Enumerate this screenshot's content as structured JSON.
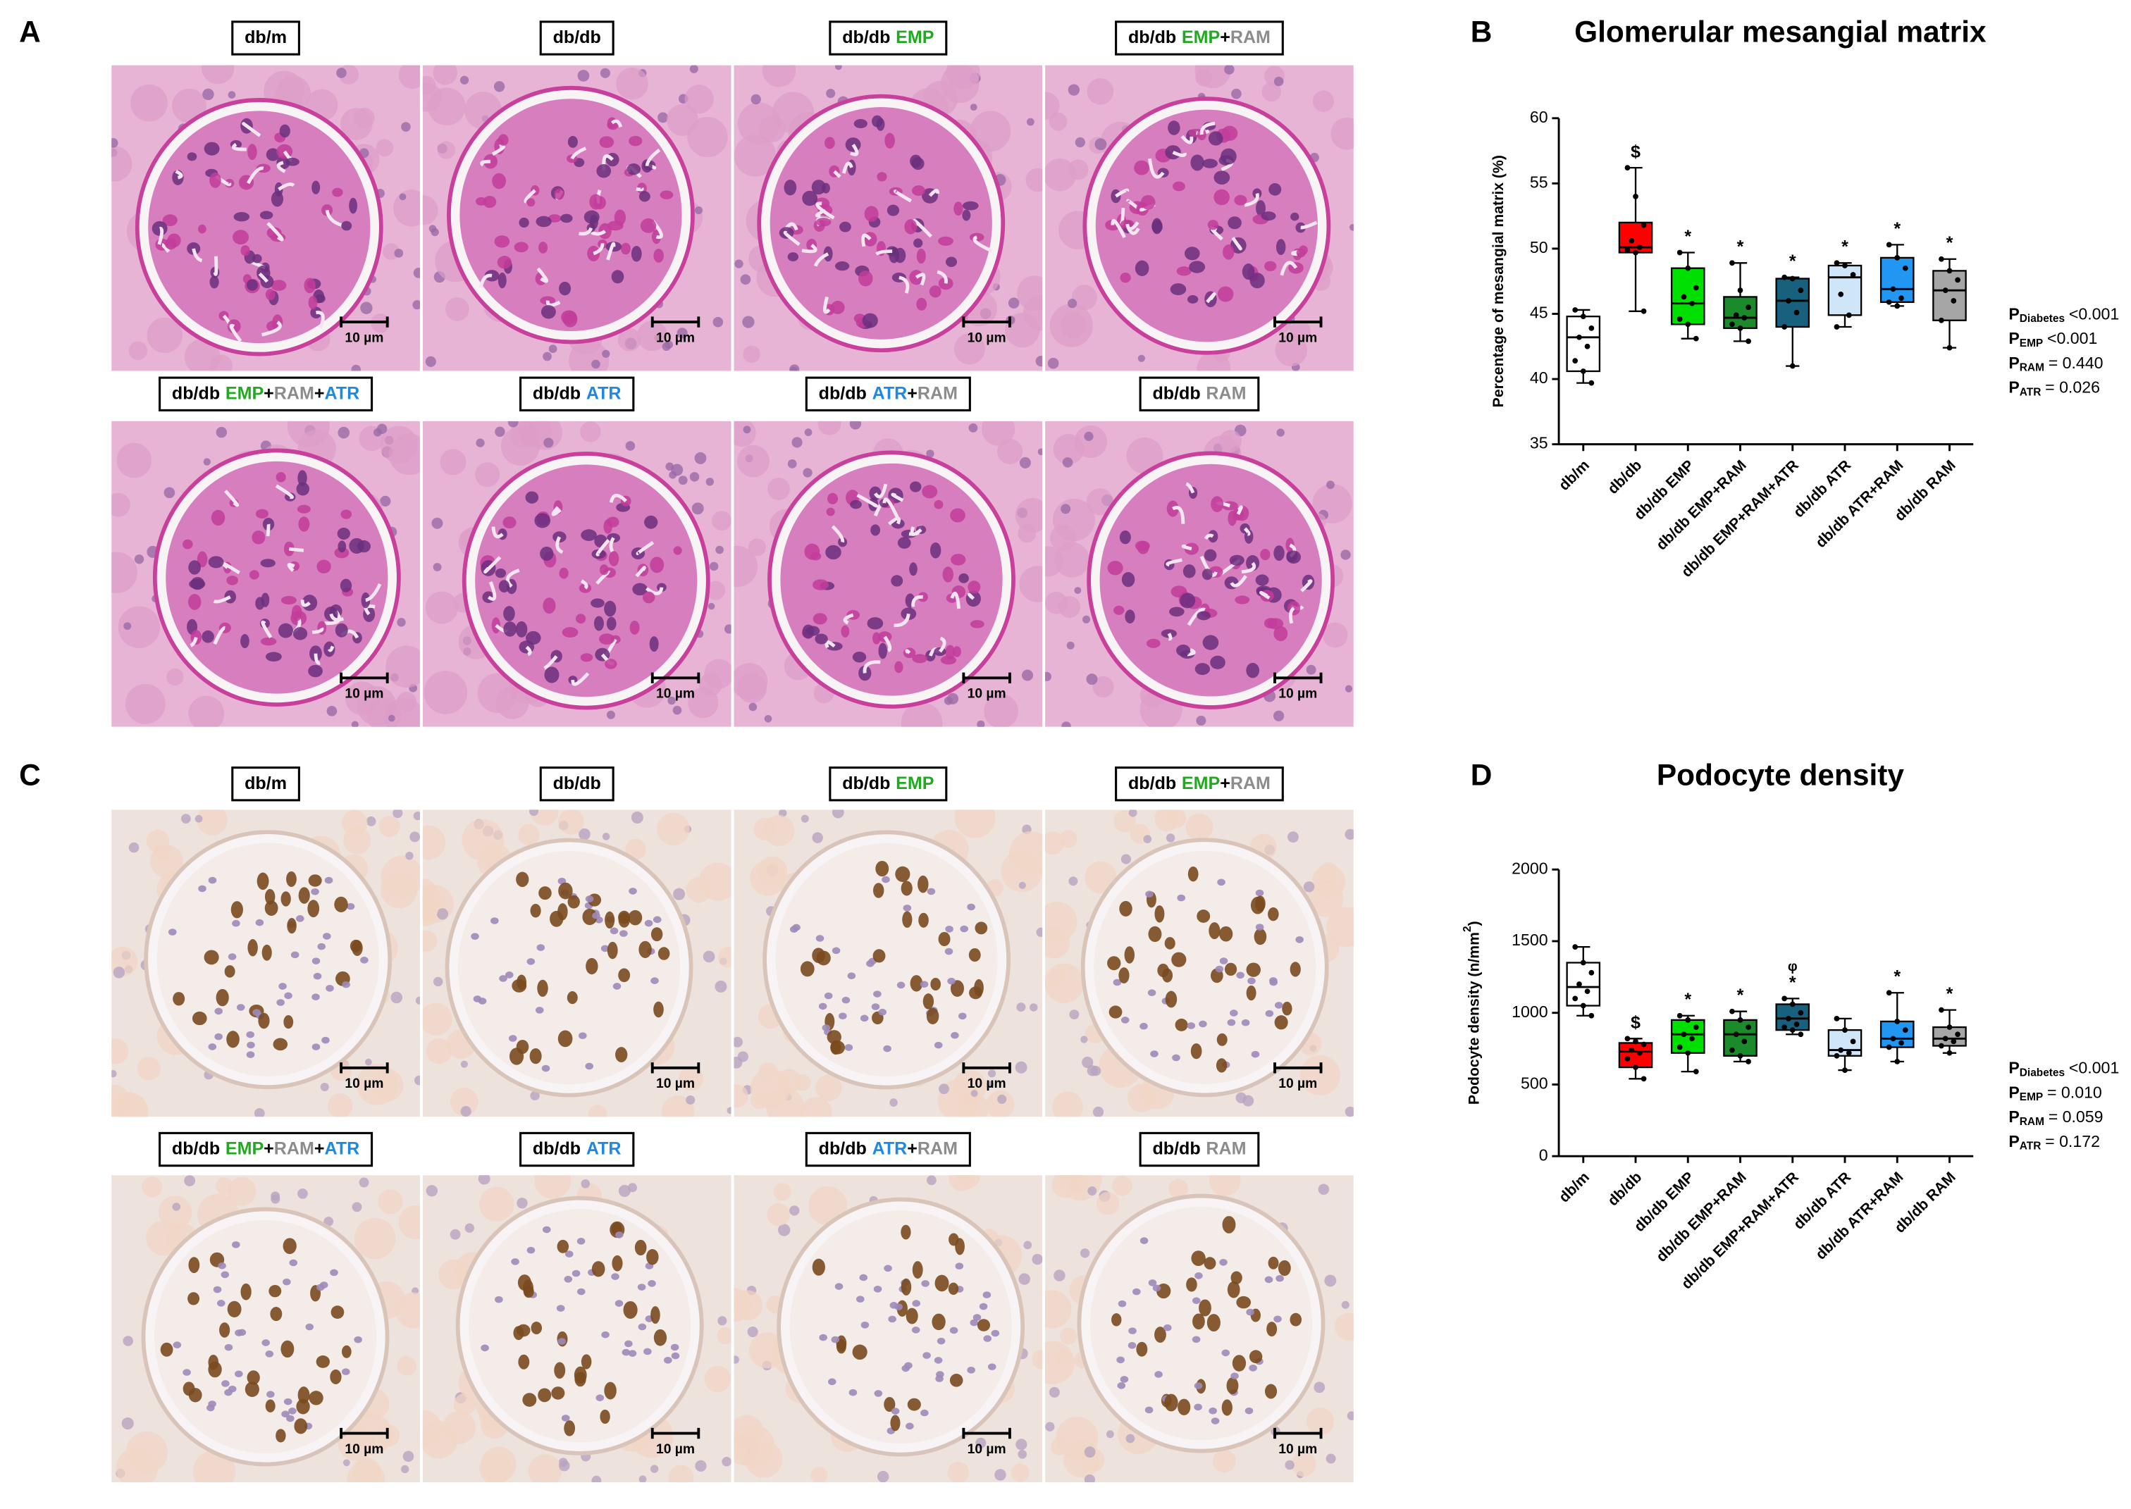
{
  "figure": {
    "panels": [
      {
        "label": "A",
        "stain": "pas",
        "images": [
          {
            "label": {
              "group": "db/m"
            },
            "scale": "10 µm"
          },
          {
            "label": {
              "group": "db/db"
            },
            "scale": "10 µm"
          },
          {
            "label": {
              "group": "db/db",
              "parts": [
                {
                  "text": "EMP",
                  "color": "#1faa1f"
                }
              ]
            },
            "scale": "10 µm"
          },
          {
            "label": {
              "group": "db/db",
              "parts": [
                {
                  "text": "EMP",
                  "color": "#1faa1f"
                },
                {
                  "text": "+",
                  "color": "#000000"
                },
                {
                  "text": "RAM",
                  "color": "#8c8c8c"
                }
              ]
            },
            "scale": "10 µm"
          },
          {
            "label": {
              "group": "db/db",
              "parts": [
                {
                  "text": "EMP",
                  "color": "#1faa1f"
                },
                {
                  "text": "+",
                  "color": "#000000"
                },
                {
                  "text": "RAM",
                  "color": "#8c8c8c"
                },
                {
                  "text": "+",
                  "color": "#000000"
                },
                {
                  "text": "ATR",
                  "color": "#1e88e5"
                }
              ]
            },
            "scale": "10 µm"
          },
          {
            "label": {
              "group": "db/db",
              "parts": [
                {
                  "text": "ATR",
                  "color": "#1e88e5"
                }
              ]
            },
            "scale": "10 µm"
          },
          {
            "label": {
              "group": "db/db",
              "parts": [
                {
                  "text": "ATR",
                  "color": "#1e88e5"
                },
                {
                  "text": "+",
                  "color": "#000000"
                },
                {
                  "text": "RAM",
                  "color": "#8c8c8c"
                }
              ]
            },
            "scale": "10 µm"
          },
          {
            "label": {
              "group": "db/db",
              "parts": [
                {
                  "text": "RAM",
                  "color": "#8c8c8c"
                }
              ]
            },
            "scale": "10 µm"
          }
        ]
      },
      {
        "label": "C",
        "stain": "wt1",
        "images": [
          {
            "label": {
              "group": "db/m"
            },
            "scale": "10 µm"
          },
          {
            "label": {
              "group": "db/db"
            },
            "scale": "10 µm"
          },
          {
            "label": {
              "group": "db/db",
              "parts": [
                {
                  "text": "EMP",
                  "color": "#1faa1f"
                }
              ]
            },
            "scale": "10 µm"
          },
          {
            "label": {
              "group": "db/db",
              "parts": [
                {
                  "text": "EMP",
                  "color": "#1faa1f"
                },
                {
                  "text": "+",
                  "color": "#000000"
                },
                {
                  "text": "RAM",
                  "color": "#8c8c8c"
                }
              ]
            },
            "scale": "10 µm"
          },
          {
            "label": {
              "group": "db/db",
              "parts": [
                {
                  "text": "EMP",
                  "color": "#1faa1f"
                },
                {
                  "text": "+",
                  "color": "#000000"
                },
                {
                  "text": "RAM",
                  "color": "#8c8c8c"
                },
                {
                  "text": "+",
                  "color": "#000000"
                },
                {
                  "text": "ATR",
                  "color": "#1e88e5"
                }
              ]
            },
            "scale": "10 µm"
          },
          {
            "label": {
              "group": "db/db",
              "parts": [
                {
                  "text": "ATR",
                  "color": "#1e88e5"
                }
              ]
            },
            "scale": "10 µm"
          },
          {
            "label": {
              "group": "db/db",
              "parts": [
                {
                  "text": "ATR",
                  "color": "#1e88e5"
                },
                {
                  "text": "+",
                  "color": "#000000"
                },
                {
                  "text": "RAM",
                  "color": "#8c8c8c"
                }
              ]
            },
            "scale": "10 µm"
          },
          {
            "label": {
              "group": "db/db",
              "parts": [
                {
                  "text": "RAM",
                  "color": "#8c8c8c"
                }
              ]
            },
            "scale": "10 µm"
          }
        ]
      }
    ]
  },
  "chart_data": [
    {
      "type": "box",
      "label": "B",
      "title": "Glomerular mesangial matrix",
      "ylabel": {
        "text": "Percentage of mesangial matrix (%)"
      },
      "ylim": [
        35,
        60
      ],
      "yticks": [
        35,
        40,
        45,
        50,
        55,
        60
      ],
      "categories": [
        "db/m",
        "db/db",
        "db/db EMP",
        "db/db EMP+RAM",
        "db/db EMP+RAM+ATR",
        "db/db ATR",
        "db/db ATR+RAM",
        "db/db RAM"
      ],
      "colors": [
        "#ffffff",
        "#ff0000",
        "#00e000",
        "#1a8a2a",
        "#17607e",
        "#cfe6f8",
        "#2196f3",
        "#a6a6a6"
      ],
      "boxes": [
        {
          "min": 39.7,
          "q1": 40.6,
          "median": 43.2,
          "q3": 44.8,
          "max": 45.3,
          "points": [
            45.3,
            44.8,
            43.9,
            43.2,
            42.5,
            41.4,
            40.6,
            39.7
          ]
        },
        {
          "min": 45.2,
          "q1": 49.7,
          "median": 50.1,
          "q3": 52.0,
          "max": 56.2,
          "points": [
            56.2,
            54.0,
            51.8,
            50.6,
            50.1,
            49.9,
            49.7,
            45.2
          ]
        },
        {
          "min": 43.1,
          "q1": 44.2,
          "median": 45.8,
          "q3": 48.5,
          "max": 49.7,
          "points": [
            49.7,
            48.5,
            47.0,
            46.3,
            45.8,
            44.6,
            44.2,
            43.1
          ]
        },
        {
          "min": 42.9,
          "q1": 43.9,
          "median": 44.7,
          "q3": 46.3,
          "max": 48.9,
          "points": [
            48.9,
            46.8,
            45.5,
            44.9,
            44.7,
            44.2,
            43.9,
            42.9
          ]
        },
        {
          "min": 41.0,
          "q1": 44.0,
          "median": 46.0,
          "q3": 47.7,
          "max": 47.8,
          "points": [
            47.8,
            47.7,
            46.8,
            46.0,
            45.1,
            44.0,
            41.0
          ]
        },
        {
          "min": 44.0,
          "q1": 44.9,
          "median": 47.8,
          "q3": 48.7,
          "max": 48.9,
          "points": [
            48.9,
            48.7,
            48.0,
            46.5,
            44.9,
            44.0
          ]
        },
        {
          "min": 45.6,
          "q1": 45.9,
          "median": 46.9,
          "q3": 49.3,
          "max": 50.3,
          "points": [
            50.3,
            49.3,
            48.5,
            46.9,
            46.2,
            45.9,
            45.6
          ]
        },
        {
          "min": 42.4,
          "q1": 44.5,
          "median": 46.8,
          "q3": 48.3,
          "max": 49.2,
          "points": [
            49.2,
            48.3,
            47.6,
            46.8,
            46.0,
            44.5,
            42.4
          ]
        }
      ],
      "markers": [
        null,
        [
          "$"
        ],
        [
          "*"
        ],
        [
          "*"
        ],
        [
          "*"
        ],
        [
          "*"
        ],
        [
          "*"
        ],
        [
          "*"
        ]
      ],
      "stats": [
        {
          "p": "P",
          "sub": "Diabetes",
          "text": "<0.001"
        },
        {
          "p": "P",
          "sub": "EMP",
          "text": "<0.001"
        },
        {
          "p": "P",
          "sub": "RAM",
          "text": "= 0.440"
        },
        {
          "p": "P",
          "sub": "ATR",
          "text": "= 0.026"
        }
      ]
    },
    {
      "type": "box",
      "label": "D",
      "title": "Podocyte density",
      "ylabel": {
        "text": "Podocyte density (n/mm",
        "sup": "2",
        "end": ")"
      },
      "ylim": [
        0,
        2000
      ],
      "yticks": [
        0,
        500,
        1000,
        1500,
        2000
      ],
      "categories": [
        "db/m",
        "db/db",
        "db/db EMP",
        "db/db EMP+RAM",
        "db/db EMP+RAM+ATR",
        "db/db ATR",
        "db/db ATR+RAM",
        "db/db RAM"
      ],
      "colors": [
        "#ffffff",
        "#ff0000",
        "#00e000",
        "#1a8a2a",
        "#17607e",
        "#cfe6f8",
        "#2196f3",
        "#a6a6a6"
      ],
      "boxes": [
        {
          "min": 980,
          "q1": 1050,
          "median": 1180,
          "q3": 1350,
          "max": 1460,
          "points": [
            1460,
            1350,
            1280,
            1200,
            1150,
            1100,
            1050,
            980
          ]
        },
        {
          "min": 540,
          "q1": 620,
          "median": 730,
          "q3": 790,
          "max": 820,
          "points": [
            820,
            800,
            780,
            740,
            720,
            680,
            620,
            540
          ]
        },
        {
          "min": 590,
          "q1": 720,
          "median": 850,
          "q3": 950,
          "max": 980,
          "points": [
            980,
            950,
            900,
            850,
            820,
            760,
            720,
            590
          ]
        },
        {
          "min": 660,
          "q1": 700,
          "median": 850,
          "q3": 950,
          "max": 1010,
          "points": [
            1010,
            950,
            900,
            850,
            800,
            740,
            700,
            660
          ]
        },
        {
          "min": 850,
          "q1": 880,
          "median": 960,
          "q3": 1060,
          "max": 1100,
          "points": [
            1100,
            1060,
            1000,
            960,
            920,
            900,
            880,
            850
          ]
        },
        {
          "min": 600,
          "q1": 700,
          "median": 740,
          "q3": 880,
          "max": 960,
          "points": [
            960,
            880,
            800,
            740,
            720,
            700,
            600
          ]
        },
        {
          "min": 660,
          "q1": 760,
          "median": 820,
          "q3": 940,
          "max": 1140,
          "points": [
            1140,
            940,
            880,
            820,
            790,
            760,
            660
          ]
        },
        {
          "min": 720,
          "q1": 770,
          "median": 820,
          "q3": 900,
          "max": 1020,
          "points": [
            1020,
            900,
            850,
            820,
            800,
            770,
            720
          ]
        }
      ],
      "markers": [
        null,
        [
          "$"
        ],
        [
          "*"
        ],
        [
          "*"
        ],
        [
          "*",
          "φ"
        ],
        null,
        [
          "*"
        ],
        [
          "*"
        ]
      ],
      "stats": [
        {
          "p": "P",
          "sub": "Diabetes",
          "text": "<0.001"
        },
        {
          "p": "P",
          "sub": "EMP",
          "text": "= 0.010"
        },
        {
          "p": "P",
          "sub": "RAM",
          "text": "= 0.059"
        },
        {
          "p": "P",
          "sub": "ATR",
          "text": "= 0.172"
        }
      ]
    }
  ]
}
